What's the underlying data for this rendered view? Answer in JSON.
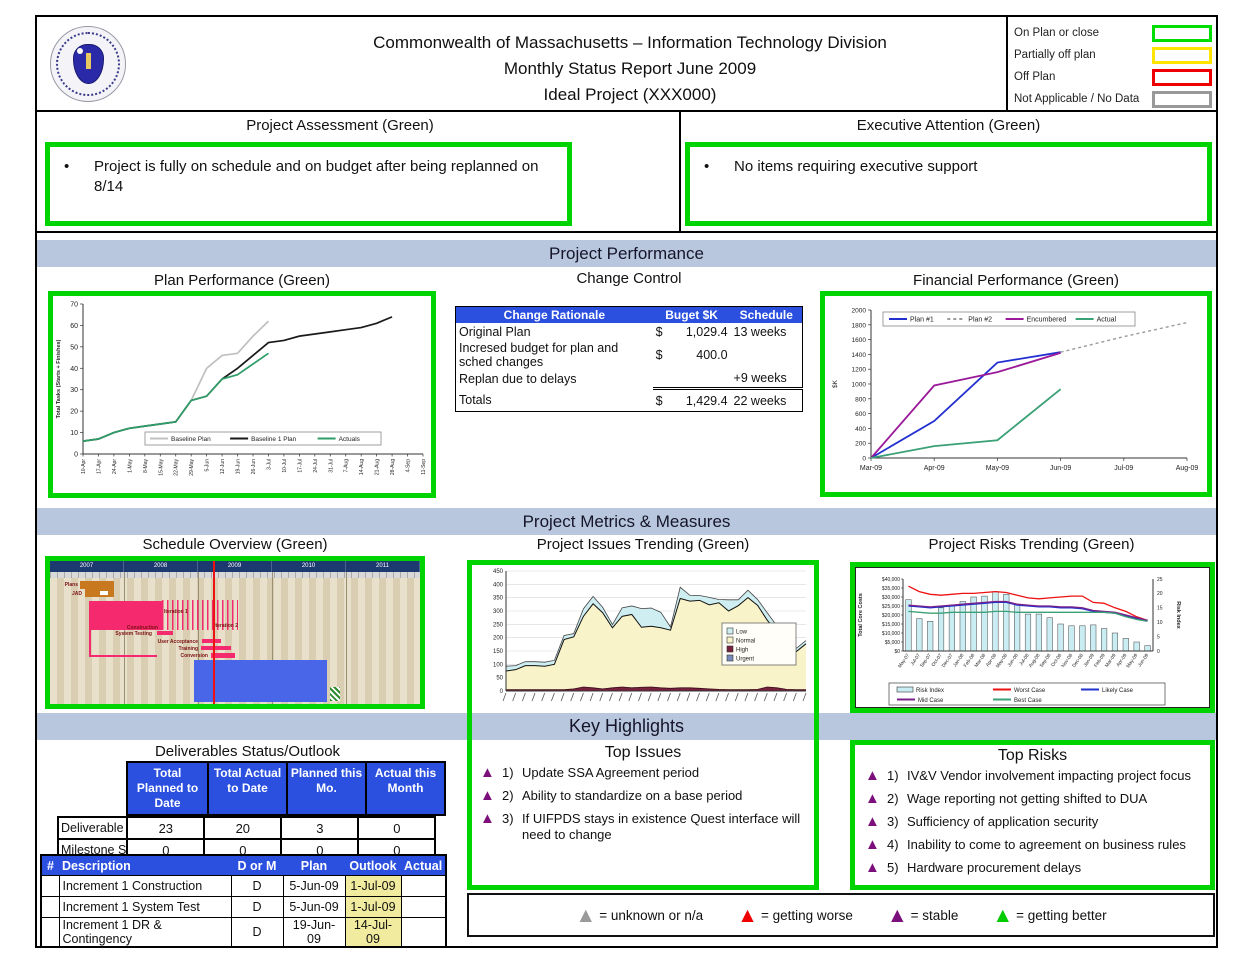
{
  "header": {
    "title_lines": [
      "Commonwealth of Massachusetts – Information Technology Division",
      "Monthly Status Report June 2009",
      "Ideal Project (XXX000)"
    ],
    "status_legend": [
      {
        "label": "On Plan or close",
        "color": "#00dd00"
      },
      {
        "label": "Partially off plan",
        "color": "#ffe400"
      },
      {
        "label": "Off Plan",
        "color": "#ee0000"
      },
      {
        "label": "Not Applicable / No Data",
        "color": "#999999"
      }
    ]
  },
  "assessment": {
    "title": "Project Assessment (Green)",
    "bullets": [
      "Project is fully on schedule and on budget after being replanned on 8/14"
    ]
  },
  "executive": {
    "title": "Executive Attention (Green)",
    "bullets": [
      "No items requiring executive support"
    ]
  },
  "bands": {
    "performance": "Project Performance",
    "metrics": "Project Metrics & Measures",
    "highlights": "Key Highlights"
  },
  "change_control": {
    "title": "Change Control",
    "columns": [
      "Change Rationale",
      "Buget $K",
      "Schedule"
    ],
    "rows": [
      {
        "rationale": "Original Plan",
        "dollar": "$",
        "budget": "1,029.4",
        "schedule": "13 weeks"
      },
      {
        "rationale": "Incresed budget for plan and sched changes",
        "dollar": "$",
        "budget": "400.0",
        "schedule": ""
      },
      {
        "rationale": "Replan due to delays",
        "dollar": "",
        "budget": "",
        "schedule": "+9 weeks"
      }
    ],
    "totals": {
      "label": "Totals",
      "dollar": "$",
      "budget": "1,429.4",
      "schedule": "22 weeks"
    }
  },
  "schedule_overview": {
    "title": "Schedule Overview (Green)",
    "years": [
      "2007",
      "2008",
      "2009",
      "2010",
      "2011"
    ],
    "labels": {
      "plans": "Plans",
      "jad": "JAD",
      "construction": "Construction",
      "iteration1": "Iteration 1",
      "iteration2": "Iteration 2",
      "system_testing": "System Testing",
      "user_acceptance": "User Acceptance",
      "training": "Training",
      "conversion": "Conversion"
    }
  },
  "deliverables": {
    "title": "Deliverables Status/Outlook",
    "headers": [
      "Total Planned to Date",
      "Total Actual to Date",
      "Planned this Mo.",
      "Actual this Month"
    ],
    "rows": [
      {
        "label": "Deliverable",
        "values": [
          "23",
          "20",
          "3",
          "0"
        ]
      },
      {
        "label": "Milestone S",
        "values": [
          "0",
          "0",
          "0",
          "0"
        ]
      }
    ]
  },
  "milestones_table": {
    "headers": [
      "#",
      "Description",
      "D or M",
      "Plan",
      "Outlook",
      "Actual"
    ],
    "rows": [
      {
        "num": "",
        "desc": "Increment 1 Construction",
        "dm": "D",
        "plan": "5-Jun-09",
        "outlook": "1-Jul-09",
        "actual": ""
      },
      {
        "num": "",
        "desc": "Increment 1 System Test",
        "dm": "D",
        "plan": "5-Jun-09",
        "outlook": "1-Jul-09",
        "actual": ""
      },
      {
        "num": "",
        "desc": "Increment 1 DR & Contingency",
        "dm": "D",
        "plan": "19-Jun-09",
        "outlook": "14-Jul-09",
        "actual": ""
      }
    ]
  },
  "top_issues": {
    "title": "Top Issues",
    "items": [
      {
        "num": "1)",
        "text": "Update SSA Agreement period"
      },
      {
        "num": "2)",
        "text": "Ability to standardize on a base period"
      },
      {
        "num": "3)",
        "text": "If UIFPDS stays in existence Quest interface will need to change"
      }
    ]
  },
  "top_risks": {
    "title": "Top Risks",
    "items": [
      {
        "num": "1)",
        "text": "IV&V Vendor involvement impacting project focus"
      },
      {
        "num": "2)",
        "text": "Wage reporting not getting shifted to DUA"
      },
      {
        "num": "3)",
        "text": "Sufficiency of application security"
      },
      {
        "num": "4)",
        "text": "Inability to come to agreement on business rules"
      },
      {
        "num": "5)",
        "text": "Hardware procurement delays"
      }
    ]
  },
  "trend_legend": [
    {
      "color": "#9a9a9a",
      "text": "= unknown or n/a"
    },
    {
      "color": "#ee0000",
      "text": "= getting worse"
    },
    {
      "color": "#7b0f7b",
      "text": "= stable"
    },
    {
      "color": "#00cc00",
      "text": "= getting better"
    }
  ],
  "chart_data": [
    {
      "id": "plan_performance",
      "type": "line",
      "title": "Plan Performance (Green)",
      "ylabel": "Total Tasks (Starts + Finishes)",
      "ylim": [
        0,
        70
      ],
      "y_step": 10,
      "legend_position": "bottom-inside",
      "categories": [
        "10-Apr",
        "17-Apr",
        "24-Apr",
        "1-May",
        "8-May",
        "15-May",
        "22-May",
        "29-May",
        "5-Jun",
        "12-Jun",
        "19-Jun",
        "26-Jun",
        "3-Jul",
        "10-Jul",
        "17-Jul",
        "24-Jul",
        "31-Jul",
        "7-Aug",
        "14-Aug",
        "21-Aug",
        "28-Aug",
        "4-Sep",
        "11-Sep"
      ],
      "series": [
        {
          "name": "Baseline Plan",
          "color": "#c0c0c0",
          "values": [
            6,
            7,
            10,
            12,
            13,
            14,
            15,
            25,
            40,
            46,
            47,
            55,
            62
          ]
        },
        {
          "name": "Baseline 1 Plan",
          "color": "#1a1a1a",
          "values": [
            6,
            7,
            10,
            12,
            13,
            14,
            15,
            25,
            27,
            35,
            40,
            46,
            52,
            53,
            55,
            56,
            57,
            58,
            59,
            61,
            64
          ]
        },
        {
          "name": "Actuals",
          "color": "#2e9e68",
          "values": [
            6,
            7,
            10,
            12,
            13,
            14,
            15,
            25,
            27,
            35,
            37,
            42,
            47
          ]
        }
      ]
    },
    {
      "id": "financial_performance",
      "type": "line",
      "title": "Financial Performance (Green)",
      "ylabel": "$K",
      "ylim": [
        0,
        2000
      ],
      "y_step": 200,
      "legend_position": "top-inside",
      "categories": [
        "Mar-09",
        "Apr-09",
        "May-09",
        "Jun-09",
        "Jul-09",
        "Aug-09"
      ],
      "series": [
        {
          "name": "Plan #1",
          "color": "#2230d0",
          "dashed": false,
          "values": [
            0,
            500,
            1290,
            1430,
            null,
            null
          ]
        },
        {
          "name": "Plan #2",
          "color": "#9a9a9a",
          "dashed": true,
          "values": [
            null,
            null,
            null,
            1430,
            1640,
            1830
          ]
        },
        {
          "name": "Encumbered",
          "color": "#9a1a9a",
          "dashed": false,
          "values": [
            0,
            980,
            1160,
            1420,
            null,
            null
          ]
        },
        {
          "name": "Actual",
          "color": "#3aa076",
          "dashed": false,
          "values": [
            0,
            160,
            240,
            930,
            null,
            null
          ]
        }
      ]
    },
    {
      "id": "issues_trending",
      "type": "area-stacked",
      "title": "Project Issues Trending (Green)",
      "ylim": [
        0,
        450
      ],
      "y_step": 50,
      "x_labels_illegible": true,
      "x_tick_count": 32,
      "legend": [
        "Low",
        "Normal",
        "High",
        "Urgent"
      ],
      "legend_colors": [
        "#cfeef2",
        "#f8f3c8",
        "#76203c",
        "#7788bb"
      ],
      "series": [
        {
          "name": "High",
          "color": "#76203c",
          "values": [
            5,
            5,
            5,
            5,
            5,
            5,
            5,
            8,
            15,
            12,
            8,
            12,
            15,
            12,
            14,
            15,
            12,
            10,
            12,
            12,
            10,
            8,
            6,
            5,
            5,
            5,
            6,
            15,
            12,
            6,
            5,
            5
          ]
        },
        {
          "name": "Normal",
          "color": "#f8f3c8",
          "values": [
            70,
            75,
            90,
            90,
            88,
            95,
            188,
            195,
            265,
            315,
            285,
            225,
            265,
            275,
            225,
            228,
            225,
            218,
            335,
            325,
            330,
            315,
            325,
            295,
            315,
            345,
            315,
            250,
            210,
            182,
            143,
            172
          ]
        },
        {
          "name": "Low",
          "color": "#cfeef2",
          "values": [
            18,
            15,
            15,
            15,
            15,
            15,
            15,
            12,
            28,
            28,
            20,
            12,
            32,
            32,
            70,
            68,
            58,
            12,
            42,
            22,
            18,
            28,
            12,
            42,
            22,
            28,
            22,
            28,
            22,
            28,
            12,
            12
          ]
        }
      ]
    },
    {
      "id": "risks_trending",
      "type": "combo",
      "title": "Project Risks Trending (Green)",
      "ylabel_left": "Total Core Costs",
      "ylabel_right": "Risk Index",
      "ylim_left": [
        0,
        40000
      ],
      "y_step_left": 5000,
      "ylim_right": [
        0,
        25
      ],
      "y_step_right": 5,
      "categories": [
        "May-07",
        "Jul-07",
        "Sep-07",
        "Oct-07",
        "Dec-07",
        "Jan-08",
        "Feb-08",
        "Mar-08",
        "Apr-08",
        "May-08",
        "Jun-08",
        "Jul-08",
        "Aug-08",
        "Sep-08",
        "Oct-08",
        "Nov-08",
        "Dec-08",
        "Jan-09",
        "Feb-09",
        "Mar-09",
        "Apr-09",
        "May-09",
        "Jun-09"
      ],
      "bars": {
        "name": "Risk Index",
        "color": "#c9edf2",
        "values": [
          28500,
          18000,
          16500,
          24000,
          25500,
          27500,
          30000,
          30500,
          33000,
          31500,
          26000,
          20500,
          20500,
          18500,
          15000,
          14000,
          14000,
          14500,
          12500,
          10000,
          7000,
          5000,
          3000
        ]
      },
      "lines": [
        {
          "name": "Worst Case",
          "color": "#ee1111",
          "values": [
            36000,
            33000,
            31500,
            31000,
            31500,
            32000,
            32000,
            32500,
            33000,
            32500,
            31000,
            29500,
            29000,
            29500,
            30000,
            30500,
            30500,
            27000,
            26500,
            24000,
            22000,
            19000,
            17000
          ]
        },
        {
          "name": "Likely Case",
          "color": "#2233cc",
          "values": [
            25000,
            24500,
            24000,
            24500,
            25000,
            25500,
            26000,
            26500,
            27000,
            27000,
            25500,
            25000,
            24500,
            24500,
            24000,
            24000,
            23500,
            22000,
            21500,
            21000,
            19500,
            18000,
            17000
          ]
        },
        {
          "name": "Mid Case",
          "color": "#7a1f8a",
          "values": [
            25500,
            25000,
            24500,
            25000,
            25500,
            26000,
            26500,
            27000,
            27500,
            27500,
            26000,
            25500,
            25000,
            25000,
            24500,
            24500,
            24000,
            22500,
            22000,
            21500,
            20000,
            18500,
            17000
          ]
        },
        {
          "name": "Best Case",
          "color": "#3aa076",
          "values": [
            22000,
            21500,
            21000,
            21000,
            21500,
            21500,
            21500,
            21500,
            22000,
            22000,
            21500,
            21500,
            21500,
            21500,
            21500,
            21500,
            21500,
            21500,
            21500,
            21000,
            19000,
            17500,
            16500
          ]
        }
      ],
      "legend": [
        "Risk Index",
        "Worst Case",
        "Likely Case",
        "Mid Case",
        "Best Case"
      ]
    }
  ]
}
